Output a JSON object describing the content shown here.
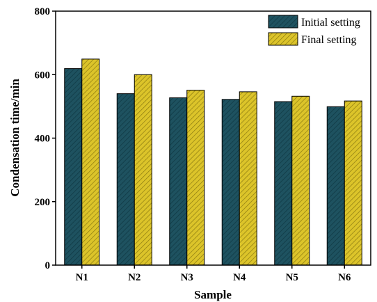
{
  "chart_data": {
    "type": "bar",
    "xlabel": "Sample",
    "ylabel": "Condensation time/min",
    "ylim": [
      0,
      800
    ],
    "yticks": [
      0,
      200,
      400,
      600,
      800
    ],
    "categories": [
      "N1",
      "N2",
      "N3",
      "N4",
      "N5",
      "N6"
    ],
    "series": [
      {
        "name": "Initial setting",
        "values": [
          619,
          540,
          527,
          522,
          515,
          499
        ],
        "color": "#1e5260"
      },
      {
        "name": "Final setting",
        "values": [
          649,
          600,
          551,
          546,
          532,
          517
        ],
        "color": "#dcc42a"
      }
    ],
    "legend": "top-right",
    "grid": false,
    "bar_pattern": "diagonal-hatch"
  }
}
